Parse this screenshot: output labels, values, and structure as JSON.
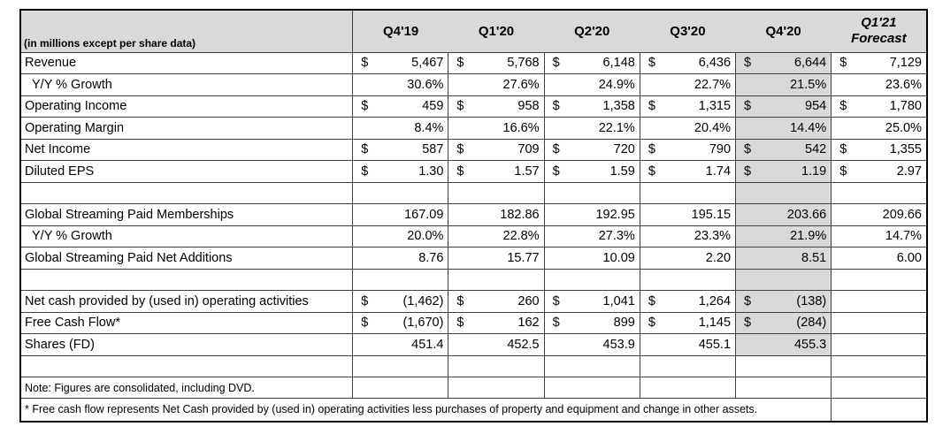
{
  "table": {
    "corner_label": "(in millions except per share data)",
    "currency_symbol": "$",
    "columns": [
      "Q4'19",
      "Q1'20",
      "Q2'20",
      "Q3'20",
      "Q4'20"
    ],
    "forecast_column": {
      "line1": "Q1'21",
      "line2": "Forecast"
    },
    "highlighted_column": "Q4'20",
    "colors": {
      "header_bg": "#d9d9d9",
      "highlight_bg": "#d9d9d9",
      "grid": "#404040",
      "text": "#000000"
    },
    "rows": [
      {
        "type": "data",
        "label": "Revenue",
        "dollar": true,
        "indent": false,
        "shaded": true,
        "values": [
          "5,467",
          "5,768",
          "6,148",
          "6,436",
          "6,644",
          "7,129"
        ]
      },
      {
        "type": "data",
        "label": "Y/Y % Growth",
        "dollar": false,
        "indent": true,
        "shaded": true,
        "values": [
          "30.6%",
          "27.6%",
          "24.9%",
          "22.7%",
          "21.5%",
          "23.6%"
        ]
      },
      {
        "type": "data",
        "label": "Operating Income",
        "dollar": true,
        "indent": false,
        "shaded": true,
        "values": [
          "459",
          "958",
          "1,358",
          "1,315",
          "954",
          "1,780"
        ]
      },
      {
        "type": "data",
        "label": "Operating Margin",
        "dollar": false,
        "indent": false,
        "shaded": true,
        "values": [
          "8.4%",
          "16.6%",
          "22.1%",
          "20.4%",
          "14.4%",
          "25.0%"
        ]
      },
      {
        "type": "data",
        "label": "Net Income",
        "dollar": true,
        "indent": false,
        "shaded": true,
        "values": [
          "587",
          "709",
          "720",
          "790",
          "542",
          "1,355"
        ]
      },
      {
        "type": "data",
        "label": "Diluted EPS",
        "dollar": true,
        "indent": false,
        "shaded": true,
        "values": [
          "1.30",
          "1.57",
          "1.59",
          "1.74",
          "1.19",
          "2.97"
        ]
      },
      {
        "type": "blank",
        "label": "",
        "dollar": false,
        "indent": false,
        "shaded": true,
        "values": [
          "",
          "",
          "",
          "",
          "",
          ""
        ]
      },
      {
        "type": "data",
        "label": "Global Streaming Paid Memberships",
        "dollar": false,
        "indent": false,
        "shaded": true,
        "values": [
          "167.09",
          "182.86",
          "192.95",
          "195.15",
          "203.66",
          "209.66"
        ]
      },
      {
        "type": "data",
        "label": "Y/Y % Growth",
        "dollar": false,
        "indent": true,
        "shaded": true,
        "values": [
          "20.0%",
          "22.8%",
          "27.3%",
          "23.3%",
          "21.9%",
          "14.7%"
        ]
      },
      {
        "type": "data",
        "label": "Global Streaming Paid Net Additions",
        "dollar": false,
        "indent": false,
        "shaded": true,
        "values": [
          "8.76",
          "15.77",
          "10.09",
          "2.20",
          "8.51",
          "6.00"
        ]
      },
      {
        "type": "blank",
        "label": "",
        "dollar": false,
        "indent": false,
        "shaded": true,
        "values": [
          "",
          "",
          "",
          "",
          "",
          ""
        ]
      },
      {
        "type": "data",
        "label": "Net cash provided by (used in) operating activities",
        "dollar": true,
        "indent": false,
        "shaded": true,
        "values": [
          "(1,462)",
          "260",
          "1,041",
          "1,264",
          "(138)",
          ""
        ]
      },
      {
        "type": "data",
        "label": "Free Cash Flow*",
        "dollar": true,
        "indent": false,
        "shaded": true,
        "values": [
          "(1,670)",
          "162",
          "899",
          "1,145",
          "(284)",
          ""
        ]
      },
      {
        "type": "data",
        "label": "Shares (FD)",
        "dollar": false,
        "indent": false,
        "shaded": true,
        "values": [
          "451.4",
          "452.5",
          "453.9",
          "455.1",
          "455.3",
          ""
        ]
      },
      {
        "type": "blank",
        "label": "",
        "dollar": false,
        "indent": false,
        "shaded": false,
        "values": [
          "",
          "",
          "",
          "",
          "",
          ""
        ]
      },
      {
        "type": "note",
        "label": "Note: Figures are consolidated, including DVD.",
        "dollar": false,
        "indent": false,
        "shaded": false,
        "values": [
          "",
          "",
          "",
          "",
          "",
          ""
        ]
      },
      {
        "type": "footnote",
        "label": "* Free cash flow represents Net Cash provided by (used in) operating activities less purchases of property and equipment and change in other assets.",
        "dollar": false,
        "indent": false,
        "shaded": false,
        "values": [
          ""
        ]
      }
    ]
  }
}
